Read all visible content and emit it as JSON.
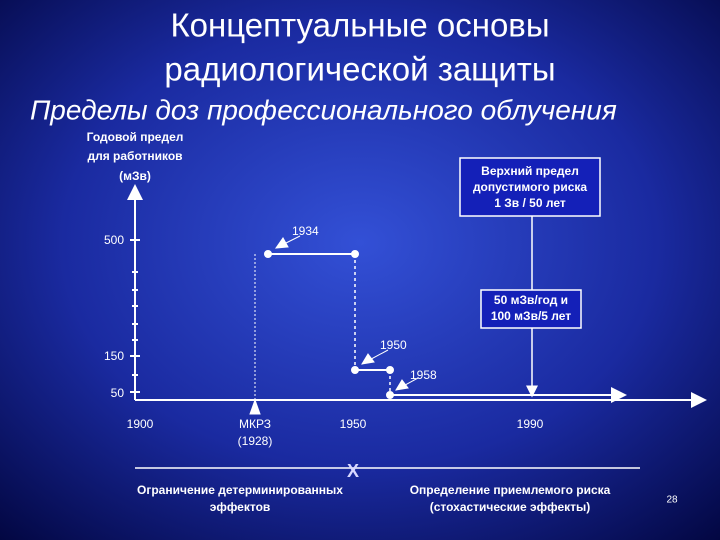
{
  "header": {
    "title_lines": [
      "Концептуальные основы",
      "радиологической защиты"
    ],
    "subtitle": "Пределы доз профессионального облучения"
  },
  "axis_label_lines": [
    "Годовой предел",
    "для работников",
    "(мЗв)"
  ],
  "y_labels": [
    "500",
    "150",
    "50"
  ],
  "annotations": [
    "1934",
    "1950",
    "1958"
  ],
  "x_labels": {
    "y1900": "1900",
    "icrp_lines": [
      "МКРЗ",
      "(1928)"
    ],
    "y1950": "1950",
    "y1990": "1990"
  },
  "boxes": [
    {
      "lines": [
        "Верхний предел",
        "допустимого риска",
        "1 Зв / 50 лет"
      ]
    },
    {
      "lines": [
        "50 мЗв/год и",
        "100 мЗв/5 лет"
      ]
    }
  ],
  "bottom": {
    "divider_mark": "X",
    "left_lines": [
      "Ограничение детерминированных",
      "эффектов"
    ],
    "right_lines": [
      "Определение приемлемого риска",
      "(стохастические эффекты)"
    ]
  },
  "page_number": "28"
}
